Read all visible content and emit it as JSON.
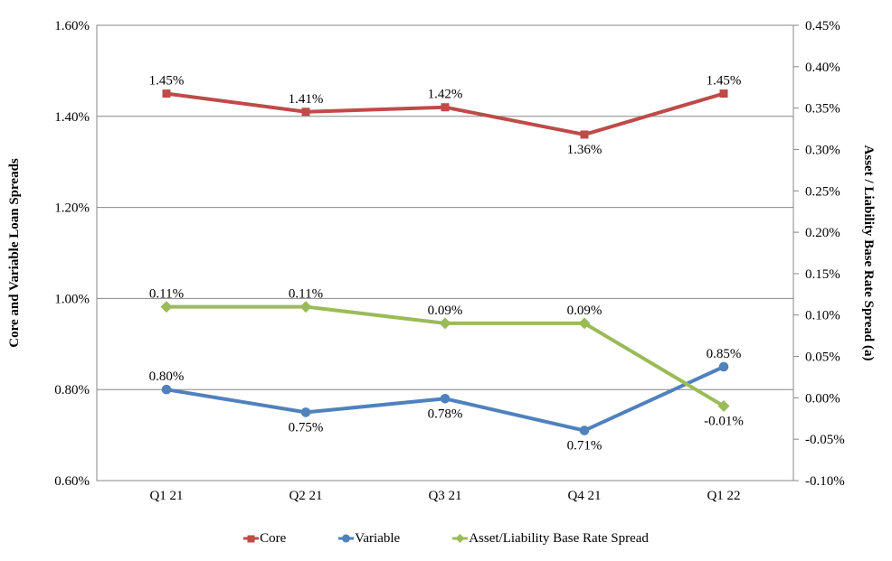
{
  "chart_data": {
    "type": "line",
    "categories": [
      "Q1 21",
      "Q2 21",
      "Q3 21",
      "Q4 21",
      "Q1 22"
    ],
    "series": [
      {
        "name": "Core",
        "axis": "left",
        "color": "#BE4B48",
        "marker": "square",
        "values": [
          1.45,
          1.41,
          1.42,
          1.36,
          1.45
        ],
        "labels": [
          "1.45%",
          "1.41%",
          "1.42%",
          "1.36%",
          "1.45%"
        ],
        "label_side": [
          "above",
          "above",
          "above",
          "below",
          "above"
        ]
      },
      {
        "name": "Variable",
        "axis": "left",
        "color": "#4F81BD",
        "marker": "circle",
        "values": [
          0.8,
          0.75,
          0.78,
          0.71,
          0.85
        ],
        "labels": [
          "0.80%",
          "0.75%",
          "0.78%",
          "0.71%",
          "0.85%"
        ],
        "label_side": [
          "above",
          "below",
          "below",
          "below",
          "above"
        ]
      },
      {
        "name": "Asset/Liability Base Rate Spread",
        "axis": "right",
        "color": "#9BBB59",
        "marker": "diamond",
        "values": [
          0.11,
          0.11,
          0.09,
          0.09,
          -0.01
        ],
        "labels": [
          "0.11%",
          "0.11%",
          "0.09%",
          "0.09%",
          "-0.01%"
        ],
        "label_side": [
          "above",
          "above",
          "above",
          "above",
          "below"
        ]
      }
    ],
    "left_axis": {
      "title": "Core and Variable Loan Spreads",
      "min": 0.6,
      "max": 1.6,
      "step": 0.2,
      "tick_labels": [
        "1.60%",
        "1.40%",
        "1.20%",
        "1.00%",
        "0.80%",
        "0.60%"
      ]
    },
    "right_axis": {
      "title": "Asset / Liability Base Rate Spread (a)",
      "min": -0.1,
      "max": 0.45,
      "step": 0.05,
      "tick_labels": [
        "0.45%",
        "0.40%",
        "0.35%",
        "0.30%",
        "0.25%",
        "0.20%",
        "0.15%",
        "0.10%",
        "0.05%",
        "0.00%",
        "-0.05%",
        "-0.10%"
      ]
    },
    "grid": "horizontal-on-left-axis-ticks",
    "legend_position": "bottom",
    "colors": {
      "grid_and_border": "#878787",
      "text": "#000000",
      "background": "#ffffff"
    }
  }
}
